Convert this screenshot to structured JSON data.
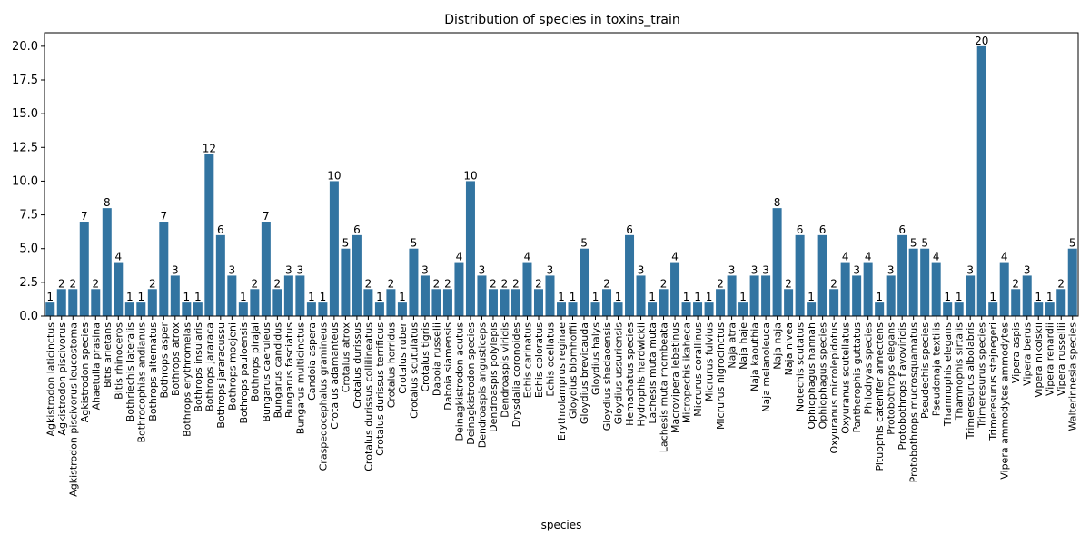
{
  "chart_data": {
    "type": "bar",
    "title": "Distribution of species in toxins_train",
    "xlabel": "species",
    "ylabel": "",
    "ylim": [
      0,
      21
    ],
    "yticks": [
      "0.0",
      "2.5",
      "5.0",
      "7.5",
      "10.0",
      "12.5",
      "15.0",
      "17.5",
      "20.0"
    ],
    "grid": false,
    "bar_color": "#3274a1",
    "categories": [
      "Agkistrodon laticinctus",
      "Agkistrodon piscivorus",
      "Agkistrodon piscivorus leucostoma",
      "Agkistrodon species",
      "Ahaetulla prasina",
      "Bitis arietans",
      "Bitis rhinoceros",
      "Bothriechis lateralis",
      "Bothrocophias andianus",
      "Bothrops alternatus",
      "Bothrops asper",
      "Bothrops atrox",
      "Bothrops erythromelas",
      "Bothrops insularis",
      "Bothrops jararaca",
      "Bothrops jararacussu",
      "Bothrops moojeni",
      "Bothrops pauloensis",
      "Bothrops pirajai",
      "Bungarus caeruleus",
      "Bungarus candidus",
      "Bungarus fasciatus",
      "Bungarus multicinctus",
      "Candoia aspera",
      "Craspedocephalus gramineus",
      "Crotalus adamanteus",
      "Crotalus atrox",
      "Crotalus durissus",
      "Crotalus durissus collilineatus",
      "Crotalus durissus terrificus",
      "Crotalus horridus",
      "Crotalus ruber",
      "Crotalus scutulatus",
      "Crotalus tigris",
      "Daboia russelii",
      "Daboia siamensis",
      "Deinagkistrodon acutus",
      "Deinagkistrodon species",
      "Dendroaspis angusticeps",
      "Dendroaspis polylepis",
      "Dendroaspis viridis",
      "Drysdalia coronoides",
      "Echis carinatus",
      "Echis coloratus",
      "Echis ocellatus",
      "Erythrolamprus reginae",
      "Gloydius blomhoffii",
      "Gloydius brevicauda",
      "Gloydius halys",
      "Gloydius shedaoensis",
      "Gloydius ussuriensis",
      "Hemachatus species",
      "Hydrophis hardwickii",
      "Lachesis muta muta",
      "Lachesis muta rhombeata",
      "Macrovipera lebetinus",
      "Micropechis ikaheca",
      "Micrurus corallinus",
      "Micrurus fulvius",
      "Micrurus nigrocinctus",
      "Naja atra",
      "Naja haje",
      "Naja kaouthia",
      "Naja melanoleuca",
      "Naja naja",
      "Naja nivea",
      "Notechis scutatus",
      "Ophiophagus hannah",
      "Ophiophagus species",
      "Oxyuranus microlepidotus",
      "Oxyuranus scutellatus",
      "Pantherophis guttatus",
      "Philodryas species",
      "Pituophis catenifer annectens",
      "Protobothrops elegans",
      "Protobothrops flavoviridis",
      "Protobothrops mucrosquamatus",
      "Pseudechis species",
      "Pseudonaja textilis",
      "Thamnophis elegans",
      "Thamnophis sirtalis",
      "Trimeresurus albolabris",
      "Trimeresurus species",
      "Trimeresurus stejnegeri",
      "Vipera ammodytes ammodytes",
      "Vipera aspis",
      "Vipera berus",
      "Vipera nikolskii",
      "Vipera renardii",
      "Vipera russellii",
      "Walterinnesia species"
    ],
    "values": [
      1,
      2,
      2,
      7,
      2,
      8,
      4,
      1,
      1,
      2,
      7,
      3,
      1,
      1,
      12,
      6,
      3,
      1,
      2,
      7,
      2,
      3,
      3,
      1,
      1,
      10,
      5,
      6,
      2,
      1,
      2,
      1,
      5,
      3,
      2,
      2,
      4,
      10,
      3,
      2,
      2,
      2,
      4,
      2,
      3,
      1,
      1,
      5,
      1,
      2,
      1,
      6,
      3,
      1,
      2,
      4,
      1,
      1,
      1,
      2,
      3,
      1,
      3,
      3,
      8,
      2,
      6,
      1,
      6,
      2,
      4,
      3,
      4,
      1,
      3,
      6,
      5,
      5,
      4,
      1,
      1,
      3,
      20,
      1,
      4,
      2,
      3,
      1,
      1,
      2,
      5
    ],
    "value_labels": [
      "1",
      "2",
      "2",
      "7",
      "2",
      "8",
      "4",
      "1",
      "1",
      "2",
      "7",
      "3",
      "1",
      "1",
      "12",
      "6",
      "3",
      "1",
      "2",
      "7",
      "2",
      "3",
      "3",
      "1",
      "1",
      "10",
      "5",
      "6",
      "2",
      "1",
      "2",
      "1",
      "5",
      "3",
      "2",
      "2",
      "4",
      "10",
      "3",
      "2",
      "2",
      "2",
      "4",
      "2",
      "3",
      "1",
      "1",
      "5",
      "1",
      "2",
      "1",
      "6",
      "3",
      "1",
      "2",
      "4",
      "1",
      "1",
      "1",
      "2",
      "3",
      "1",
      "3",
      "3",
      "8",
      "2",
      "6",
      "1",
      "6",
      "2",
      "4",
      "3",
      "4",
      "1",
      "3",
      "6",
      "5",
      "5",
      "4",
      "1",
      "1",
      "3",
      "20",
      "1",
      "4",
      "2",
      "3",
      "1",
      "1",
      "2",
      "5"
    ]
  }
}
